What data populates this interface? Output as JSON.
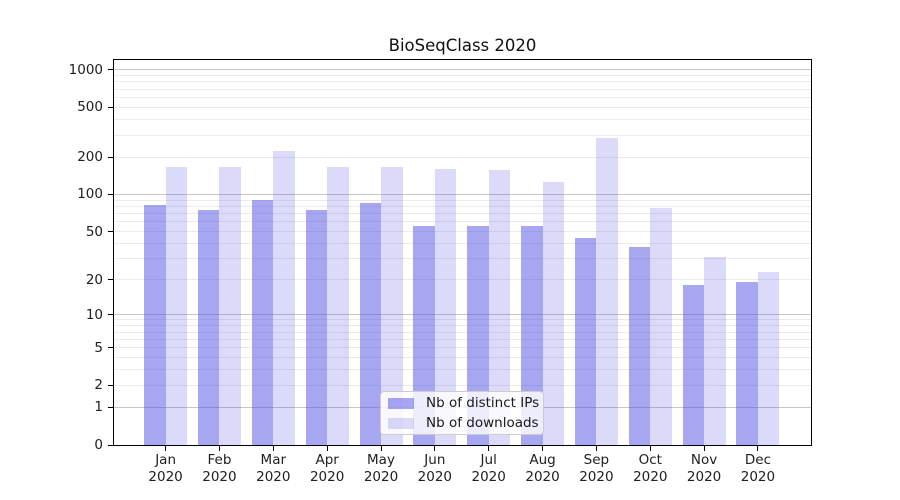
{
  "title": "BioSeqClass 2020",
  "chart_data": {
    "type": "bar",
    "title": "BioSeqClass 2020",
    "categories": [
      {
        "month": "Jan",
        "year": "2020"
      },
      {
        "month": "Feb",
        "year": "2020"
      },
      {
        "month": "Mar",
        "year": "2020"
      },
      {
        "month": "Apr",
        "year": "2020"
      },
      {
        "month": "May",
        "year": "2020"
      },
      {
        "month": "Jun",
        "year": "2020"
      },
      {
        "month": "Jul",
        "year": "2020"
      },
      {
        "month": "Aug",
        "year": "2020"
      },
      {
        "month": "Sep",
        "year": "2020"
      },
      {
        "month": "Oct",
        "year": "2020"
      },
      {
        "month": "Nov",
        "year": "2020"
      },
      {
        "month": "Dec",
        "year": "2020"
      }
    ],
    "series": [
      {
        "name": "Nb of distinct IPs",
        "color": "rgba(85,85,228,0.52)",
        "values": [
          82,
          75,
          90,
          75,
          85,
          55,
          55,
          55,
          44,
          37,
          18,
          19
        ]
      },
      {
        "name": "Nb of downloads",
        "color": "rgba(85,85,228,0.21)",
        "values": [
          165,
          165,
          225,
          165,
          167,
          161,
          157,
          126,
          285,
          77,
          31,
          23
        ]
      }
    ],
    "xlabel": "",
    "ylabel": "",
    "y_scale": "log1p",
    "ylim": [
      0,
      1200
    ],
    "y_ticks": [
      0,
      1,
      2,
      5,
      10,
      20,
      50,
      100,
      200,
      500,
      1000
    ],
    "y_major_grid": [
      1,
      10,
      100,
      1000
    ],
    "y_minor_grid": [
      2,
      3,
      4,
      5,
      6,
      7,
      8,
      9,
      20,
      30,
      40,
      50,
      60,
      70,
      80,
      90,
      200,
      300,
      400,
      500,
      600,
      700,
      800,
      900
    ],
    "grid": true,
    "legend_position": "lower-center"
  },
  "colors": {
    "grid_major": "#c6c6c6",
    "grid_minor": "#ebebeb",
    "axis": "#000000",
    "text": "#202020"
  }
}
